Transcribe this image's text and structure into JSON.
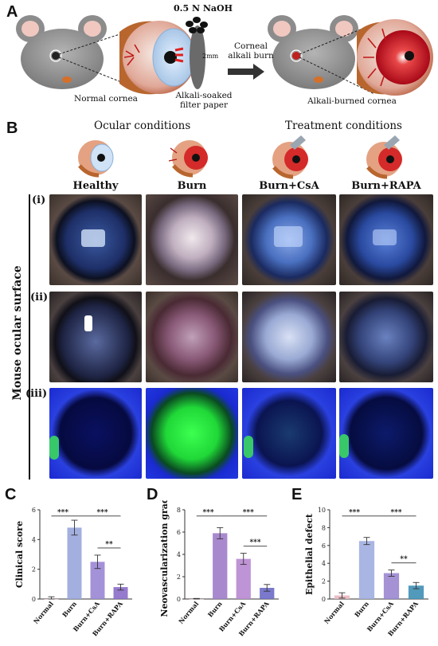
{
  "panelA": {
    "letter": "A",
    "naoh_label": "0.5 N NaOH",
    "mm_label": "2mm",
    "normal_label": "Normal cornea",
    "filter_label_1": "Alkali-soaked",
    "filter_label_2": "filter paper",
    "arrow_label_1": "Corneal",
    "arrow_label_2": "alkali burn",
    "burned_label": "Alkali-burned cornea"
  },
  "panelB": {
    "letter": "B",
    "ocular_title": "Ocular conditions",
    "treatment_title": "Treatment conditions",
    "columns": [
      "Healthy",
      "Burn",
      "Burn+CsA",
      "Burn+RAPA"
    ],
    "rows": [
      "(i)",
      "(ii)",
      "(iii)"
    ],
    "side_label": "Mouse ocular surface"
  },
  "charts": {
    "C": {
      "letter": "C"
    },
    "D": {
      "letter": "D"
    },
    "E": {
      "letter": "E"
    }
  },
  "chart_data": [
    {
      "type": "bar",
      "panel": "C",
      "categories": [
        "Normal",
        "Burn",
        "Burn+CsA",
        "Burn+RAPA"
      ],
      "values": [
        0.0,
        4.8,
        2.5,
        0.8
      ],
      "errors": [
        0.15,
        0.5,
        0.45,
        0.2
      ],
      "ylabel": "Clinical score",
      "ylim": [
        0,
        6
      ],
      "yticks": [
        0,
        2,
        4,
        6
      ],
      "colors": [
        "#d9a6b0",
        "#98a6dc",
        "#9a86d4",
        "#8a6cc8"
      ],
      "significance": [
        {
          "from": 0,
          "to": 1,
          "label": "***"
        },
        {
          "from": 1,
          "to": 3,
          "label": "***"
        },
        {
          "from": 2,
          "to": 3,
          "label": "**"
        }
      ]
    },
    {
      "type": "bar",
      "panel": "D",
      "categories": [
        "Normal",
        "Burn",
        "Burn+CsA",
        "Burn+RAPA"
      ],
      "values": [
        0.0,
        5.9,
        3.6,
        1.0
      ],
      "errors": [
        0.05,
        0.5,
        0.5,
        0.3
      ],
      "ylabel": "Neovascularization grade",
      "ylim": [
        0,
        8
      ],
      "yticks": [
        0,
        2,
        4,
        6,
        8
      ],
      "colors": [
        "#c9a0b8",
        "#a07cc8",
        "#b888d2",
        "#6c6ac6"
      ],
      "significance": [
        {
          "from": 0,
          "to": 1,
          "label": "***"
        },
        {
          "from": 1,
          "to": 3,
          "label": "***"
        },
        {
          "from": 2,
          "to": 3,
          "label": "***"
        }
      ]
    },
    {
      "type": "bar",
      "panel": "E",
      "categories": [
        "Normal",
        "Burn",
        "Burn+CsA",
        "Burn+RAPA"
      ],
      "values": [
        0.4,
        6.5,
        2.9,
        1.5
      ],
      "errors": [
        0.3,
        0.4,
        0.35,
        0.35
      ],
      "ylabel": "Epithelial defect",
      "ylim": [
        0,
        10
      ],
      "yticks": [
        0,
        2,
        4,
        6,
        8,
        10
      ],
      "colors": [
        "#e8b8c0",
        "#a0aee0",
        "#9a86d0",
        "#3f8fb5"
      ],
      "significance": [
        {
          "from": 0,
          "to": 1,
          "label": "***"
        },
        {
          "from": 1,
          "to": 3,
          "label": "***"
        },
        {
          "from": 2,
          "to": 3,
          "label": "**"
        }
      ]
    }
  ]
}
